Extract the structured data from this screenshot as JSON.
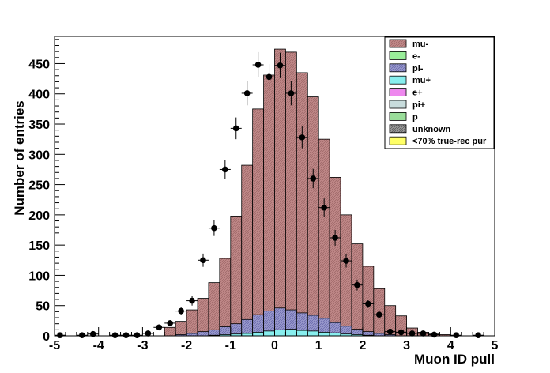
{
  "chart_data": {
    "type": "bar",
    "xlabel": "Muon ID pull",
    "ylabel": "Number of entries",
    "xlim": [
      -5,
      5
    ],
    "ylim": [
      0,
      495
    ],
    "bin_width": 0.25,
    "x_ticks": [
      -5,
      -4,
      -3,
      -2,
      -1,
      0,
      1,
      2,
      3,
      4,
      5
    ],
    "y_ticks": [
      0,
      50,
      100,
      150,
      200,
      250,
      300,
      350,
      400,
      450
    ],
    "grid": false,
    "legend_position": "top-right",
    "colors": {
      "mu-": "#c08888",
      "e-": "#99ee99",
      "pi-": "#9999cc",
      "mu+": "#88eeee",
      "e+": "#ee88ee",
      "pi+": "#c8dcdc",
      "p": "#99dd99",
      "unknown": "#888888",
      "<70% true-rec pur": "#ffff66"
    },
    "series": [
      {
        "name": "mu-",
        "bins": [
          {
            "x": -2.5,
            "y": 14
          },
          {
            "x": -2.25,
            "y": 24
          },
          {
            "x": -2.0,
            "y": 43
          },
          {
            "x": -1.75,
            "y": 62
          },
          {
            "x": -1.5,
            "y": 88
          },
          {
            "x": -1.25,
            "y": 128
          },
          {
            "x": -1.0,
            "y": 198
          },
          {
            "x": -0.75,
            "y": 282
          },
          {
            "x": -0.5,
            "y": 375
          },
          {
            "x": -0.25,
            "y": 431
          },
          {
            "x": 0.0,
            "y": 474
          },
          {
            "x": 0.25,
            "y": 469
          },
          {
            "x": 0.5,
            "y": 435
          },
          {
            "x": 0.75,
            "y": 395
          },
          {
            "x": 1.0,
            "y": 325
          },
          {
            "x": 1.25,
            "y": 262
          },
          {
            "x": 1.5,
            "y": 200
          },
          {
            "x": 1.75,
            "y": 152
          },
          {
            "x": 2.0,
            "y": 115
          },
          {
            "x": 2.25,
            "y": 78
          },
          {
            "x": 2.5,
            "y": 50
          },
          {
            "x": 2.75,
            "y": 33
          },
          {
            "x": 3.0,
            "y": 13
          },
          {
            "x": 3.25,
            "y": 6
          },
          {
            "x": 3.5,
            "y": 3
          },
          {
            "x": 3.75,
            "y": 2
          }
        ]
      },
      {
        "name": "pi-",
        "bins": [
          {
            "x": -2.25,
            "y": 2
          },
          {
            "x": -2.0,
            "y": 4
          },
          {
            "x": -1.75,
            "y": 7
          },
          {
            "x": -1.5,
            "y": 10
          },
          {
            "x": -1.25,
            "y": 15
          },
          {
            "x": -1.0,
            "y": 20
          },
          {
            "x": -0.75,
            "y": 27
          },
          {
            "x": -0.5,
            "y": 35
          },
          {
            "x": -0.25,
            "y": 41
          },
          {
            "x": 0.0,
            "y": 46
          },
          {
            "x": 0.25,
            "y": 43
          },
          {
            "x": 0.5,
            "y": 38
          },
          {
            "x": 0.75,
            "y": 34
          },
          {
            "x": 1.0,
            "y": 29
          },
          {
            "x": 1.25,
            "y": 22
          },
          {
            "x": 1.5,
            "y": 16
          },
          {
            "x": 1.75,
            "y": 11
          },
          {
            "x": 2.0,
            "y": 7
          },
          {
            "x": 2.25,
            "y": 4
          },
          {
            "x": 2.5,
            "y": 2
          }
        ]
      },
      {
        "name": "mu+",
        "bins": [
          {
            "x": -1.5,
            "y": 1
          },
          {
            "x": -1.25,
            "y": 2
          },
          {
            "x": -1.0,
            "y": 3
          },
          {
            "x": -0.75,
            "y": 4
          },
          {
            "x": -0.5,
            "y": 6
          },
          {
            "x": -0.25,
            "y": 8
          },
          {
            "x": 0.0,
            "y": 10
          },
          {
            "x": 0.25,
            "y": 11
          },
          {
            "x": 0.5,
            "y": 9
          },
          {
            "x": 0.75,
            "y": 8
          },
          {
            "x": 1.0,
            "y": 6
          },
          {
            "x": 1.25,
            "y": 5
          },
          {
            "x": 1.5,
            "y": 3
          },
          {
            "x": 1.75,
            "y": 2
          },
          {
            "x": 2.0,
            "y": 1
          }
        ]
      },
      {
        "name": "data",
        "points": [
          {
            "x": -4.875,
            "y": 1,
            "err": 1
          },
          {
            "x": -4.375,
            "y": 1,
            "err": 1
          },
          {
            "x": -4.125,
            "y": 3,
            "err": 2
          },
          {
            "x": -3.625,
            "y": 1,
            "err": 1
          },
          {
            "x": -3.375,
            "y": 1,
            "err": 1
          },
          {
            "x": -3.125,
            "y": 1,
            "err": 1
          },
          {
            "x": -2.875,
            "y": 4,
            "err": 2
          },
          {
            "x": -2.625,
            "y": 14,
            "err": 4
          },
          {
            "x": -2.375,
            "y": 21,
            "err": 5
          },
          {
            "x": -2.125,
            "y": 41,
            "err": 6
          },
          {
            "x": -1.875,
            "y": 58,
            "err": 8
          },
          {
            "x": -1.625,
            "y": 125,
            "err": 11
          },
          {
            "x": -1.375,
            "y": 178,
            "err": 13
          },
          {
            "x": -1.125,
            "y": 275,
            "err": 16
          },
          {
            "x": -0.875,
            "y": 343,
            "err": 18
          },
          {
            "x": -0.625,
            "y": 401,
            "err": 20
          },
          {
            "x": -0.375,
            "y": 448,
            "err": 21
          },
          {
            "x": -0.125,
            "y": 428,
            "err": 21
          },
          {
            "x": 0.125,
            "y": 447,
            "err": 21
          },
          {
            "x": 0.375,
            "y": 401,
            "err": 20
          },
          {
            "x": 0.625,
            "y": 328,
            "err": 18
          },
          {
            "x": 0.875,
            "y": 260,
            "err": 16
          },
          {
            "x": 1.125,
            "y": 212,
            "err": 15
          },
          {
            "x": 1.375,
            "y": 162,
            "err": 13
          },
          {
            "x": 1.625,
            "y": 124,
            "err": 11
          },
          {
            "x": 1.875,
            "y": 84,
            "err": 9
          },
          {
            "x": 2.125,
            "y": 53,
            "err": 7
          },
          {
            "x": 2.375,
            "y": 35,
            "err": 6
          },
          {
            "x": 2.625,
            "y": 7,
            "err": 3
          },
          {
            "x": 2.875,
            "y": 6,
            "err": 2
          },
          {
            "x": 3.125,
            "y": 4,
            "err": 2
          },
          {
            "x": 3.375,
            "y": 4,
            "err": 2
          },
          {
            "x": 3.625,
            "y": 2,
            "err": 1
          },
          {
            "x": 4.125,
            "y": 1,
            "err": 1
          },
          {
            "x": 4.625,
            "y": 1,
            "err": 1
          }
        ]
      }
    ],
    "legend": [
      "mu-",
      "e-",
      "pi-",
      "mu+",
      "e+",
      "pi+",
      "p",
      "unknown",
      "<70% true-rec pur"
    ]
  }
}
